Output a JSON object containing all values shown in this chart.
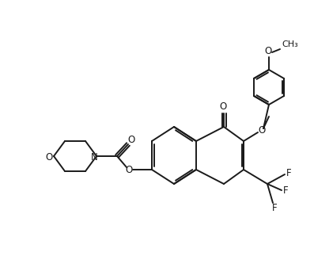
{
  "bg_color": "#ffffff",
  "line_color": "#1a1a1a",
  "line_width": 1.4,
  "font_size": 8.5,
  "figsize": [
    3.97,
    3.28
  ],
  "dpi": 100
}
